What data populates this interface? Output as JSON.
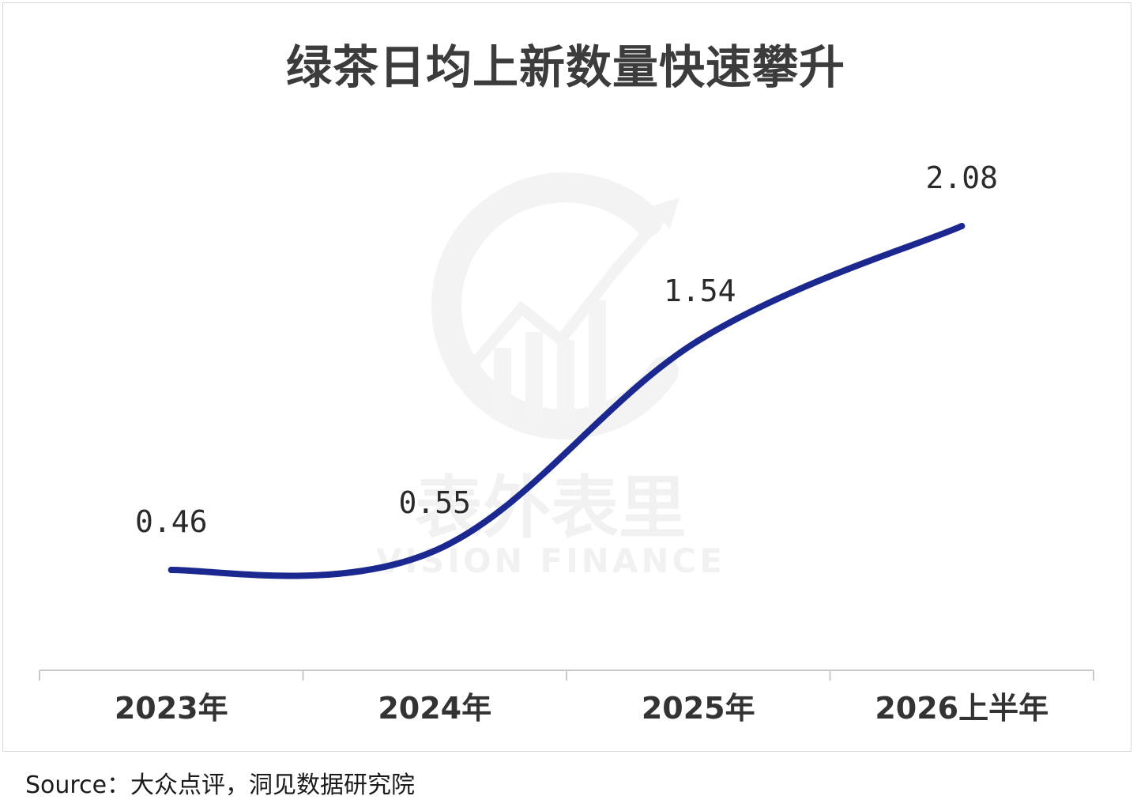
{
  "title": "绿茶日均上新数量快速攀升",
  "source": "Source：大众点评，洞见数据研究院",
  "watermark": {
    "cn": "表外表里",
    "en": "VISION FINANCE"
  },
  "colors": {
    "line": "#1a2890",
    "title": "#3c3c3c",
    "axis": "#c8c8c8",
    "label": "#2a2a2a",
    "watermark": "#f1f1f1"
  },
  "chart_data": {
    "type": "line",
    "title": "绿茶日均上新数量快速攀升",
    "categories": [
      "2023年",
      "2024年",
      "2025年",
      "2026上半年"
    ],
    "values": [
      0.46,
      0.55,
      1.54,
      2.08
    ],
    "data_labels": [
      "0.46",
      "0.55",
      "1.54",
      "2.08"
    ],
    "smooth": true,
    "grid": false,
    "legend": "none",
    "y_axis_visible": false
  }
}
